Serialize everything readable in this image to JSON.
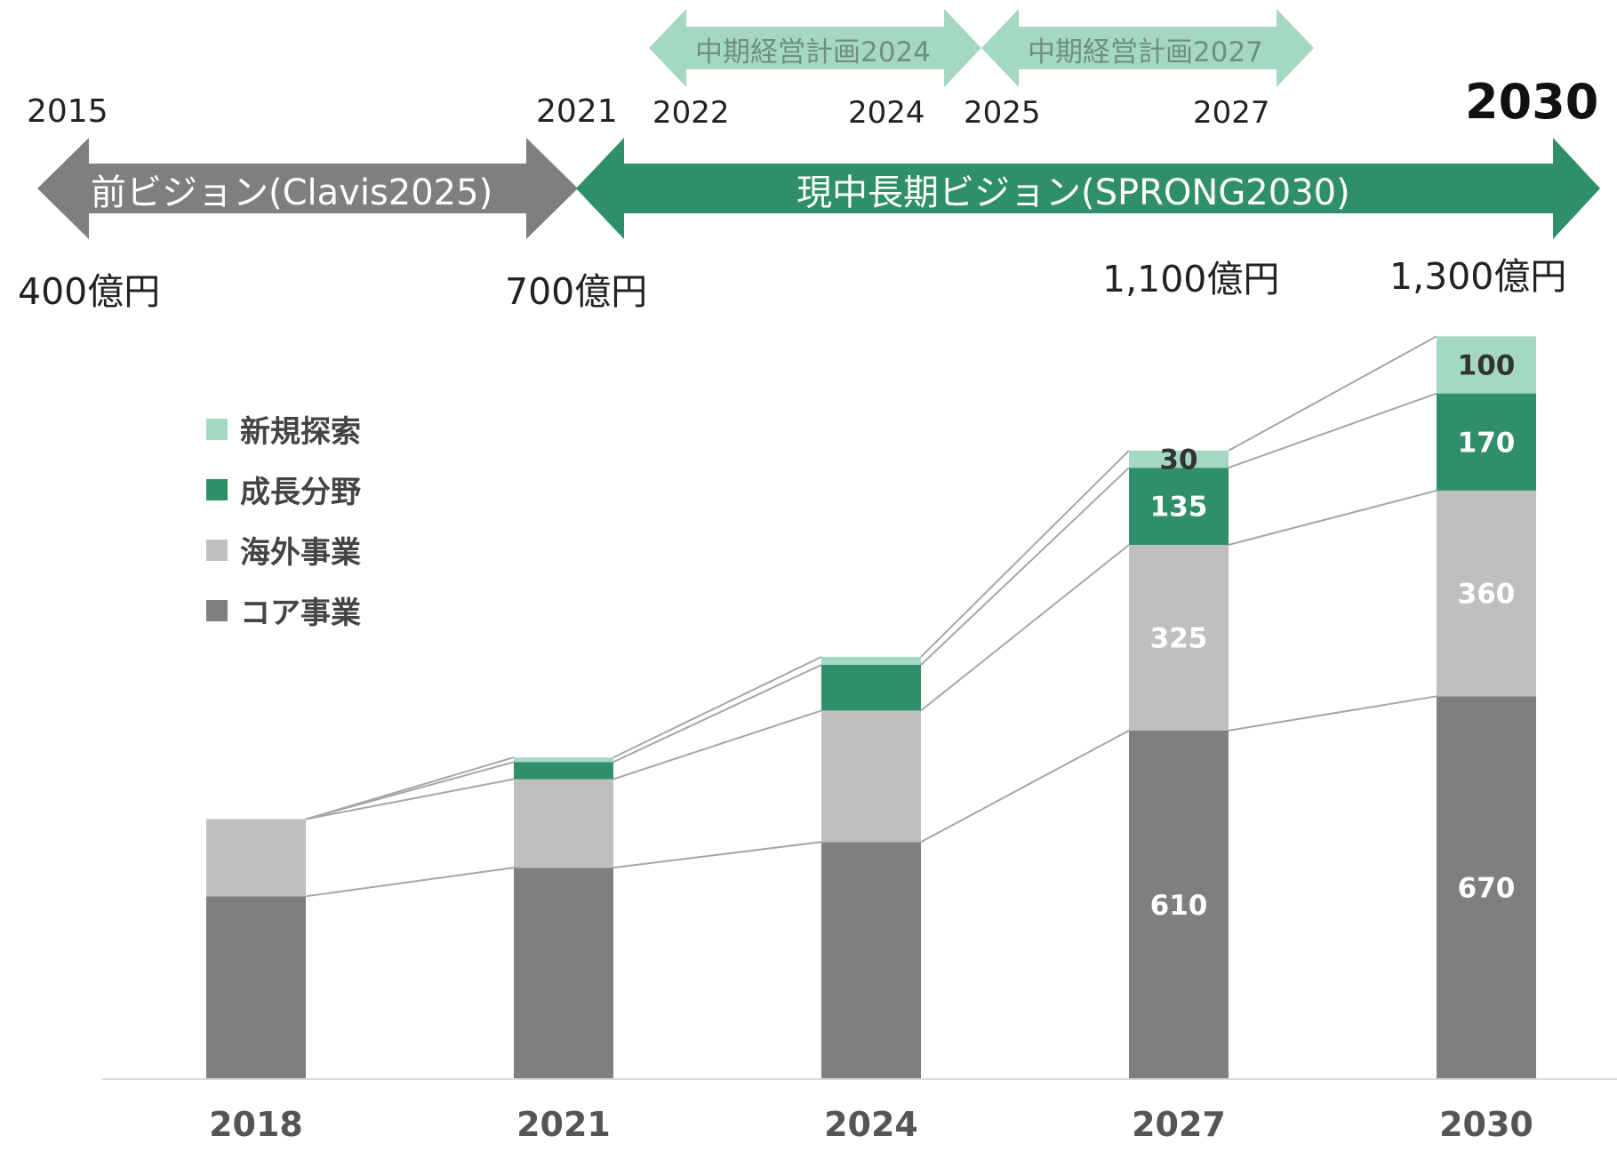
{
  "timeline": {
    "start_year": "2015",
    "mid_year": "2021",
    "end_year": "2030",
    "previous_vision": {
      "label": "前ビジョン(Clavis2025)",
      "color": "#7f7f7f"
    },
    "current_vision": {
      "label": "現中長期ビジョン(SPRONG2030)",
      "color": "#2f8f68"
    },
    "plans": [
      {
        "label": "中期経営計画2024",
        "start": "2022",
        "end": "2024",
        "color": "#a5d8c2"
      },
      {
        "label": "中期経営計画2027",
        "start": "2025",
        "end": "2027",
        "color": "#a5d8c2"
      }
    ],
    "amounts": [
      "400億円",
      "700億円",
      "1,100億円",
      "1,300億円"
    ]
  },
  "chart_data": {
    "type": "bar",
    "stacked": true,
    "categories": [
      "2018",
      "2021",
      "2024",
      "2027",
      "2030"
    ],
    "series": [
      {
        "name": "コア事業",
        "color": "#7f7f7f",
        "values": [
          320,
          370,
          415,
          610,
          670
        ],
        "labels": [
          "",
          "",
          "",
          "610",
          "670"
        ]
      },
      {
        "name": "海外事業",
        "color": "#bfbfbf",
        "values": [
          135,
          155,
          230,
          325,
          360
        ],
        "labels": [
          "",
          "",
          "",
          "325",
          "360"
        ]
      },
      {
        "name": "成長分野",
        "color": "#2f8f68",
        "values": [
          0,
          30,
          80,
          135,
          170
        ],
        "labels": [
          "",
          "",
          "",
          "135",
          "170"
        ]
      },
      {
        "name": "新規探索",
        "color": "#a5d8c2",
        "values": [
          0,
          8,
          14,
          30,
          100
        ],
        "labels": [
          "",
          "",
          "",
          "30",
          "100"
        ]
      }
    ],
    "connector_lines": true,
    "legend_position": "top-left",
    "ylim": [
      0,
      1300
    ]
  }
}
